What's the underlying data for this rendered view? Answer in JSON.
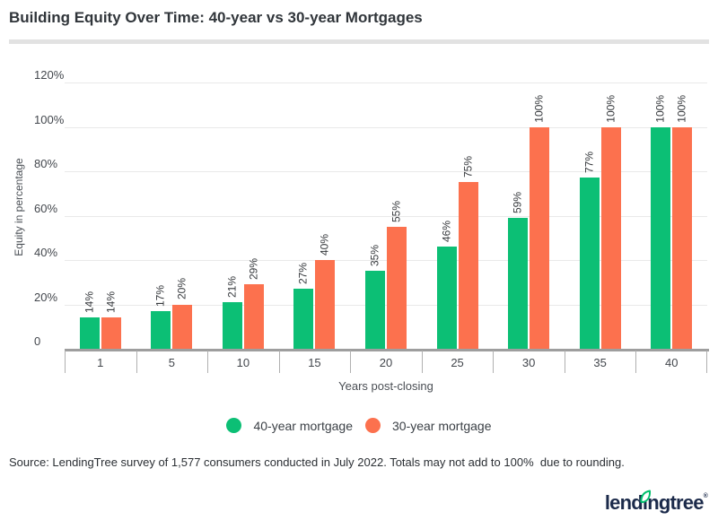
{
  "page": {
    "title": "Building Equity Over Time: 40-year vs 30-year Mortgages",
    "source_note": "Source: LendingTree survey of 1,577 consumers conducted in July 2022. Totals may not add to 100%  due to rounding."
  },
  "chart_data": {
    "type": "bar",
    "title": "Building Equity Over Time: 40-year vs 30-year Mortgages",
    "categories": [
      "1",
      "5",
      "10",
      "15",
      "20",
      "25",
      "30",
      "35",
      "40"
    ],
    "series": [
      {
        "name": "40-year mortgage",
        "color": "#0cbf75",
        "values": [
          14,
          17,
          21,
          27,
          35,
          46,
          59,
          77,
          100
        ],
        "labels": [
          "14%",
          "17%",
          "21%",
          "27%",
          "35%",
          "46%",
          "59%",
          "77%",
          "100%"
        ]
      },
      {
        "name": "30-year mortgage",
        "color": "#fc714e",
        "values": [
          14,
          20,
          29,
          40,
          55,
          75,
          100,
          100,
          100
        ],
        "labels": [
          "14%",
          "20%",
          "29%",
          "40%",
          "55%",
          "75%",
          "100%",
          "100%",
          "100%"
        ]
      }
    ],
    "xlabel": "Years post-closing",
    "ylabel": "Equity in percentage",
    "ylim": [
      0,
      120
    ],
    "y_ticks": [
      {
        "value": 0,
        "label": "0"
      },
      {
        "value": 20,
        "label": "20%"
      },
      {
        "value": 40,
        "label": "40%"
      },
      {
        "value": 60,
        "label": "60%"
      },
      {
        "value": 80,
        "label": "80%"
      },
      {
        "value": 100,
        "label": "100%"
      },
      {
        "value": 120,
        "label": "120%"
      }
    ],
    "grid": true,
    "legend_position": "bottom",
    "bar_label_rotation": -90
  },
  "logo": {
    "name": "lendingtree",
    "word_start": "lend",
    "word_i": "ı",
    "word_end": "ngtree",
    "trademark": "®",
    "leaf_color": "#00c06c",
    "text_color": "#1b2a4a"
  }
}
